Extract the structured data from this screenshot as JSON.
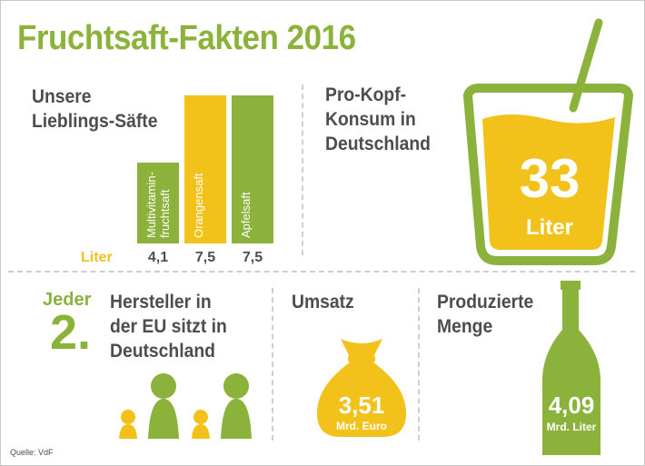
{
  "title": "Fruchtsaft-Fakten 2016",
  "favorites": {
    "heading": "Unsere\nLieblings-Säfte",
    "unit_label": "Liter"
  },
  "chart_data": {
    "type": "bar",
    "title": "Unsere Lieblings-Säfte",
    "categories": [
      "Multivitamin-\nfruchtsaft",
      "Orangensaft",
      "Apfelsaft"
    ],
    "values": [
      4.1,
      7.5,
      7.5
    ],
    "value_labels": [
      "4,1",
      "7,5",
      "7,5"
    ],
    "ylabel": "Liter",
    "ylim": [
      0,
      8
    ],
    "colors": [
      "#8bb23b",
      "#f2c21b",
      "#8bb23b"
    ]
  },
  "per_capita": {
    "heading": "Pro-Kopf-\nKonsum in\nDeutschland",
    "value": "33",
    "unit": "Liter"
  },
  "producers": {
    "every_word": "Jeder",
    "ordinal": "2.",
    "text": "Hersteller in\nder EU sitzt in\nDeutschland"
  },
  "revenue": {
    "heading": "Umsatz",
    "value": "3,51",
    "unit": "Mrd. Euro"
  },
  "production": {
    "heading": "Produzierte\nMenge",
    "value": "4,09",
    "unit": "Mrd. Liter"
  },
  "source": "Quelle: VdF",
  "colors": {
    "green": "#8bb23b",
    "yellow": "#f2c21b",
    "text": "#4d4d4d",
    "divider": "#cfcfcf"
  }
}
